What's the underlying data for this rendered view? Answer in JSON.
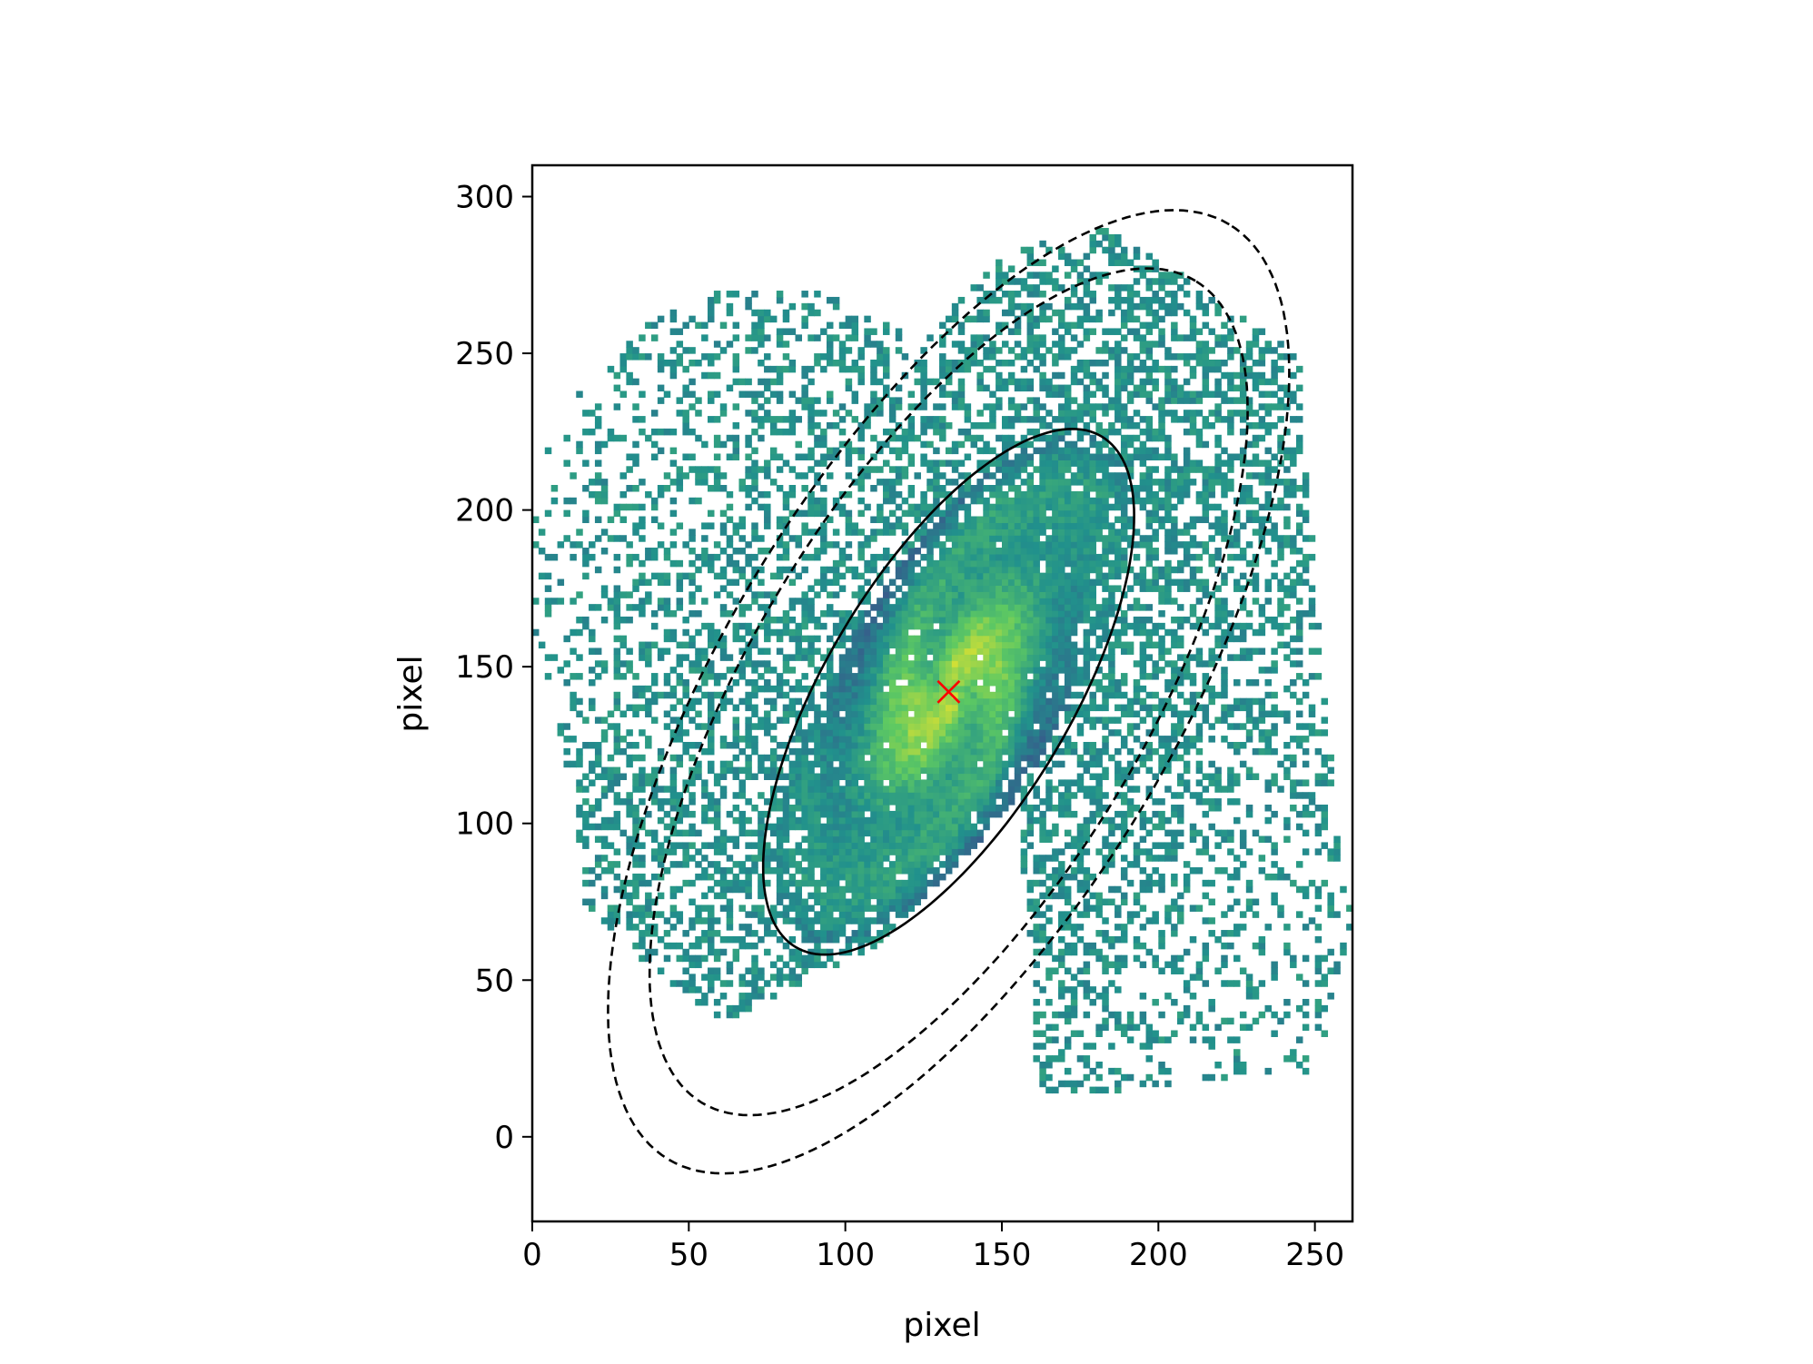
{
  "chart_data": {
    "type": "heatmap",
    "title": "",
    "xlabel": "pixel",
    "ylabel": "pixel",
    "xlim": [
      0,
      262
    ],
    "ylim": [
      -27,
      310
    ],
    "x_ticks": [
      0,
      50,
      100,
      150,
      200,
      250
    ],
    "y_ticks": [
      0,
      50,
      100,
      150,
      200,
      250,
      300
    ],
    "x_tick_labels": [
      "0",
      "50",
      "100",
      "150",
      "200",
      "250"
    ],
    "y_tick_labels": [
      "0",
      "50",
      "100",
      "150",
      "200",
      "250",
      "300"
    ],
    "grid": false,
    "colormap": "viridis",
    "center": {
      "x": 133,
      "y": 142,
      "marker": "x",
      "color": "#ff0000"
    },
    "apertures": [
      {
        "name": "inner",
        "style": "solid",
        "color": "#000000",
        "cx": 133,
        "cy": 142,
        "a": 95,
        "b": 39,
        "theta_deg": 59
      },
      {
        "name": "annulus_in",
        "style": "dashed",
        "color": "#000000",
        "cx": 133,
        "cy": 142,
        "a": 153,
        "b": 63,
        "theta_deg": 59
      },
      {
        "name": "annulus_out",
        "style": "dashed",
        "color": "#000000",
        "cx": 133,
        "cy": 142,
        "a": 174,
        "b": 72,
        "theta_deg": 59
      }
    ]
  }
}
